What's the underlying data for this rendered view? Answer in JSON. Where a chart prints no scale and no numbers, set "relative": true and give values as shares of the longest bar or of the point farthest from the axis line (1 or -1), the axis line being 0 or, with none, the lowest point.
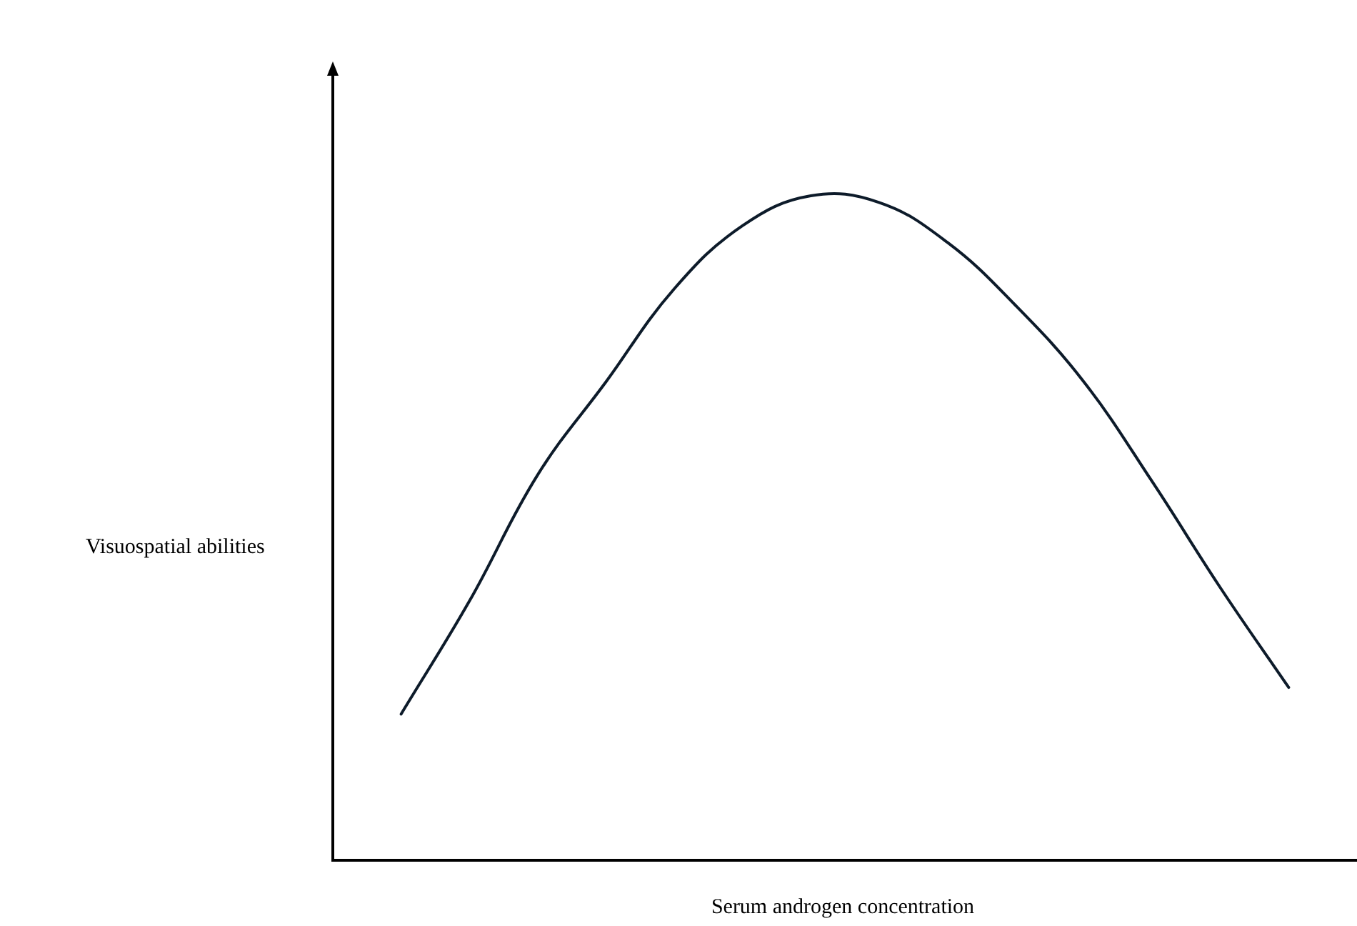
{
  "chart_data": {
    "type": "line",
    "relative": true,
    "xlabel": "Serum androgen concentration",
    "ylabel": "Visuospatial abilities",
    "categories": [
      null,
      null,
      null,
      null,
      null,
      null,
      null,
      null,
      null,
      null,
      null,
      null,
      null,
      null,
      null,
      null
    ],
    "series": [
      {
        "color": "#0d1b2a",
        "values": [
          null,
          0.22,
          0.39,
          0.58,
          0.72,
          0.86,
          0.955,
          1,
          0.99,
          0.93,
          0.835,
          0.72,
          0.57,
          0.41,
          0.26,
          null
        ]
      }
    ],
    "grid": false,
    "legend": false,
    "marker": "none",
    "line_style": "solid"
  }
}
